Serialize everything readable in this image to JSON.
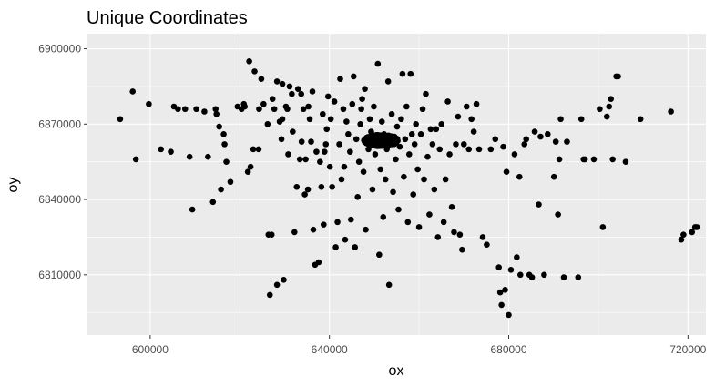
{
  "chart_data": {
    "type": "scatter",
    "title": "Unique Coordinates",
    "xlabel": "ox",
    "ylabel": "oy",
    "xlim": [
      586000,
      724000
    ],
    "ylim": [
      6786000,
      6906000
    ],
    "x_ticks": [
      600000,
      640000,
      680000,
      720000
    ],
    "y_ticks": [
      6810000,
      6840000,
      6870000,
      6900000
    ],
    "x_tick_labels": [
      "600000",
      "640000",
      "680000",
      "720000"
    ],
    "y_tick_labels": [
      "6810000",
      "6840000",
      "6870000",
      "6900000"
    ],
    "grid": true,
    "legend": "none",
    "colors": {
      "panel": "#ebebeb",
      "grid": "#ffffff",
      "point": "#000000"
    },
    "points": [
      [
        593300,
        6872000
      ],
      [
        596100,
        6883000
      ],
      [
        596800,
        6856000
      ],
      [
        599700,
        6878000
      ],
      [
        602400,
        6860000
      ],
      [
        604600,
        6859000
      ],
      [
        605300,
        6877000
      ],
      [
        606200,
        6876000
      ],
      [
        607800,
        6876000
      ],
      [
        608800,
        6857000
      ],
      [
        609400,
        6836000
      ],
      [
        610300,
        6876000
      ],
      [
        612100,
        6875000
      ],
      [
        612900,
        6857000
      ],
      [
        614000,
        6839000
      ],
      [
        614600,
        6876000
      ],
      [
        614800,
        6874000
      ],
      [
        615400,
        6869000
      ],
      [
        615800,
        6844000
      ],
      [
        616400,
        6866000
      ],
      [
        616600,
        6862000
      ],
      [
        617000,
        6855000
      ],
      [
        617900,
        6847000
      ],
      [
        619500,
        6877000
      ],
      [
        620400,
        6876000
      ],
      [
        620900,
        6878000
      ],
      [
        621100,
        6877000
      ],
      [
        621800,
        6851000
      ],
      [
        622400,
        6853000
      ],
      [
        622100,
        6895000
      ],
      [
        623000,
        6860000
      ],
      [
        623300,
        6891000
      ],
      [
        624200,
        6860000
      ],
      [
        624300,
        6876000
      ],
      [
        624800,
        6888000
      ],
      [
        625300,
        6878000
      ],
      [
        626200,
        6870000
      ],
      [
        626400,
        6826000
      ],
      [
        626700,
        6802000
      ],
      [
        627100,
        6826000
      ],
      [
        627300,
        6880000
      ],
      [
        627700,
        6876000
      ],
      [
        628300,
        6806000
      ],
      [
        628300,
        6887000
      ],
      [
        628900,
        6871000
      ],
      [
        629300,
        6864000
      ],
      [
        629500,
        6886000
      ],
      [
        629500,
        6872000
      ],
      [
        629800,
        6808000
      ],
      [
        630300,
        6877000
      ],
      [
        630600,
        6876000
      ],
      [
        630800,
        6858000
      ],
      [
        631100,
        6885000
      ],
      [
        631600,
        6882000
      ],
      [
        631800,
        6867000
      ],
      [
        632200,
        6827000
      ],
      [
        632700,
        6845000
      ],
      [
        633000,
        6884000
      ],
      [
        633400,
        6856000
      ],
      [
        633700,
        6882000
      ],
      [
        633800,
        6863000
      ],
      [
        634200,
        6876000
      ],
      [
        634500,
        6842000
      ],
      [
        634700,
        6856000
      ],
      [
        635200,
        6844000
      ],
      [
        635300,
        6877000
      ],
      [
        635600,
        6872000
      ],
      [
        635900,
        6863000
      ],
      [
        636200,
        6883000
      ],
      [
        636400,
        6828000
      ],
      [
        636800,
        6814000
      ],
      [
        637100,
        6859000
      ],
      [
        637600,
        6815000
      ],
      [
        637900,
        6855000
      ],
      [
        638200,
        6845000
      ],
      [
        638500,
        6874000
      ],
      [
        638700,
        6830000
      ],
      [
        638900,
        6859000
      ],
      [
        639200,
        6862000
      ],
      [
        639400,
        6868000
      ],
      [
        639700,
        6881000
      ],
      [
        640100,
        6853000
      ],
      [
        640300,
        6872000
      ],
      [
        640600,
        6845000
      ],
      [
        641100,
        6879000
      ],
      [
        641400,
        6821000
      ],
      [
        641800,
        6831000
      ],
      [
        642200,
        6862000
      ],
      [
        642400,
        6888000
      ],
      [
        642700,
        6848000
      ],
      [
        643100,
        6876000
      ],
      [
        643300,
        6853000
      ],
      [
        643500,
        6824000
      ],
      [
        643800,
        6871000
      ],
      [
        644200,
        6866000
      ],
      [
        644600,
        6859000
      ],
      [
        644800,
        6832000
      ],
      [
        645100,
        6878000
      ],
      [
        645400,
        6889000
      ],
      [
        645700,
        6821000
      ],
      [
        646000,
        6864000
      ],
      [
        646300,
        6841000
      ],
      [
        646600,
        6855000
      ],
      [
        646900,
        6870000
      ],
      [
        647100,
        6876000
      ],
      [
        647300,
        6880000
      ],
      [
        647600,
        6851000
      ],
      [
        647900,
        6884000
      ],
      [
        648100,
        6828000
      ],
      [
        648400,
        6864000
      ],
      [
        648700,
        6860000
      ],
      [
        649000,
        6872000
      ],
      [
        649300,
        6867000
      ],
      [
        649600,
        6844000
      ],
      [
        649900,
        6877000
      ],
      [
        650200,
        6858000
      ],
      [
        650500,
        6864000
      ],
      [
        650800,
        6894000
      ],
      [
        651100,
        6818000
      ],
      [
        651400,
        6852000
      ],
      [
        651700,
        6871000
      ],
      [
        652000,
        6833000
      ],
      [
        652200,
        6866000
      ],
      [
        652500,
        6848000
      ],
      [
        652800,
        6860000
      ],
      [
        653100,
        6887000
      ],
      [
        653300,
        6806000
      ],
      [
        653600,
        6862000
      ],
      [
        653900,
        6874000
      ],
      [
        654200,
        6843000
      ],
      [
        654500,
        6865000
      ],
      [
        654800,
        6856000
      ],
      [
        655100,
        6869000
      ],
      [
        655400,
        6836000
      ],
      [
        655700,
        6861000
      ],
      [
        656000,
        6872000
      ],
      [
        656300,
        6890000
      ],
      [
        656600,
        6849000
      ],
      [
        656900,
        6864000
      ],
      [
        657200,
        6877000
      ],
      [
        657500,
        6831000
      ],
      [
        657800,
        6858000
      ],
      [
        658100,
        6890000
      ],
      [
        658400,
        6866000
      ],
      [
        658700,
        6842000
      ],
      [
        659000,
        6862000
      ],
      [
        659300,
        6870000
      ],
      [
        659700,
        6852000
      ],
      [
        660000,
        6829000
      ],
      [
        660400,
        6866000
      ],
      [
        660800,
        6876000
      ],
      [
        661100,
        6848000
      ],
      [
        661500,
        6882000
      ],
      [
        661900,
        6857000
      ],
      [
        662300,
        6834000
      ],
      [
        662600,
        6868000
      ],
      [
        663000,
        6862000
      ],
      [
        663400,
        6844000
      ],
      [
        663800,
        6868000
      ],
      [
        664200,
        6825000
      ],
      [
        664600,
        6860000
      ],
      [
        665000,
        6870000
      ],
      [
        665500,
        6831000
      ],
      [
        665900,
        6848000
      ],
      [
        666400,
        6879000
      ],
      [
        666800,
        6858000
      ],
      [
        667300,
        6837000
      ],
      [
        667800,
        6827000
      ],
      [
        668200,
        6862000
      ],
      [
        668700,
        6873000
      ],
      [
        669100,
        6826000
      ],
      [
        669600,
        6820000
      ],
      [
        670000,
        6862000
      ],
      [
        670600,
        6877000
      ],
      [
        671100,
        6860000
      ],
      [
        671700,
        6872000
      ],
      [
        672200,
        6867000
      ],
      [
        672800,
        6878000
      ],
      [
        673400,
        6860000
      ],
      [
        674200,
        6825000
      ],
      [
        675100,
        6822000
      ],
      [
        676000,
        6860000
      ],
      [
        677000,
        6864000
      ],
      [
        677800,
        6813000
      ],
      [
        678100,
        6803000
      ],
      [
        678400,
        6798000
      ],
      [
        678800,
        6861000
      ],
      [
        679200,
        6804000
      ],
      [
        679500,
        6851000
      ],
      [
        680000,
        6794000
      ],
      [
        680500,
        6812000
      ],
      [
        681300,
        6858000
      ],
      [
        681800,
        6817000
      ],
      [
        682400,
        6849000
      ],
      [
        682600,
        6810000
      ],
      [
        683500,
        6862000
      ],
      [
        683900,
        6864000
      ],
      [
        684600,
        6810000
      ],
      [
        685200,
        6809000
      ],
      [
        685800,
        6867000
      ],
      [
        686700,
        6838000
      ],
      [
        687100,
        6865000
      ],
      [
        687900,
        6810000
      ],
      [
        688700,
        6866000
      ],
      [
        690100,
        6849000
      ],
      [
        690500,
        6863000
      ],
      [
        691000,
        6834000
      ],
      [
        691300,
        6856000
      ],
      [
        691600,
        6872000
      ],
      [
        692300,
        6809000
      ],
      [
        693000,
        6863000
      ],
      [
        695500,
        6809000
      ],
      [
        696200,
        6872000
      ],
      [
        696700,
        6856000
      ],
      [
        697000,
        6856000
      ],
      [
        699000,
        6856000
      ],
      [
        700300,
        6876000
      ],
      [
        701000,
        6829000
      ],
      [
        701900,
        6873000
      ],
      [
        702400,
        6877000
      ],
      [
        702800,
        6880000
      ],
      [
        703200,
        6856000
      ],
      [
        704000,
        6889000
      ],
      [
        704400,
        6889000
      ],
      [
        706100,
        6855000
      ],
      [
        709400,
        6872000
      ],
      [
        716200,
        6875000
      ],
      [
        718500,
        6824000
      ],
      [
        719000,
        6826000
      ],
      [
        720900,
        6827000
      ],
      [
        721600,
        6829000
      ],
      [
        722000,
        6829000
      ]
    ],
    "dense_cluster": {
      "center": [
        651500,
        6863500
      ],
      "spread": [
        3800,
        2300
      ],
      "count": 420
    }
  }
}
